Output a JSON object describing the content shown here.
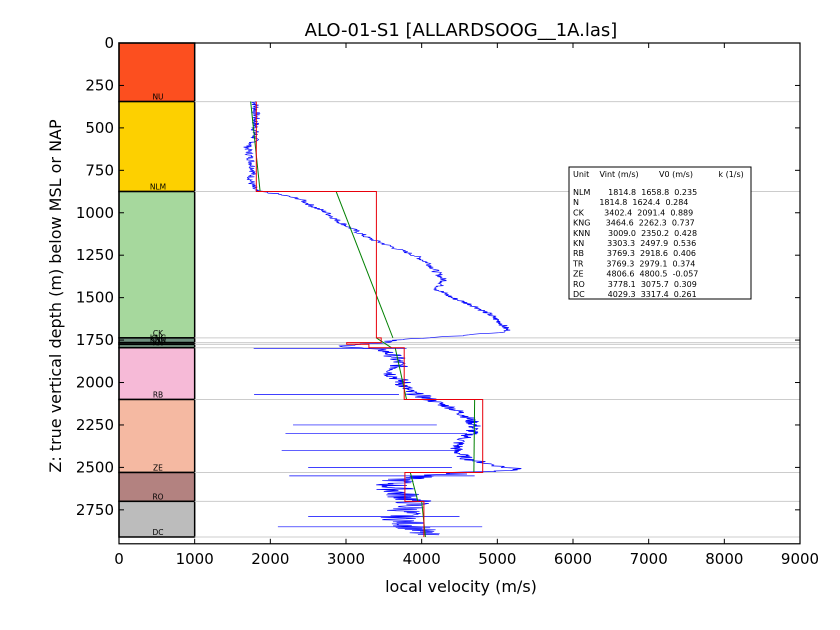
{
  "chart_data": {
    "type": "line",
    "title": "ALO-01-S1 [ALLARDSOOG__1A.las]",
    "xlabel": "local velocity (m/s)",
    "ylabel": "Z: true vertical depth (m) below MSL or NAP",
    "xlim": [
      0,
      9000
    ],
    "ylim": [
      2950,
      0
    ],
    "x_ticks": [
      0,
      1000,
      2000,
      3000,
      4000,
      5000,
      6000,
      7000,
      8000,
      9000
    ],
    "y_ticks": [
      0,
      250,
      500,
      750,
      1000,
      1250,
      1500,
      1750,
      2000,
      2250,
      2500,
      2750
    ],
    "grid": false,
    "lithology_column": {
      "x_range": [
        0,
        1000
      ],
      "units": [
        {
          "name": "NU",
          "top": 0,
          "base": 345,
          "color": "#fc4f1f"
        },
        {
          "name": "NLM",
          "top": 345,
          "base": 875,
          "color": "#fdd000"
        },
        {
          "name": "CK",
          "top": 875,
          "base": 1737,
          "color": "#a6d89d"
        },
        {
          "name": "KNG",
          "top": 1737,
          "base": 1765,
          "color": "#6f8f7e"
        },
        {
          "name": "KNN",
          "top": 1765,
          "base": 1775,
          "color": "#7c9c89"
        },
        {
          "name": "KN",
          "top": 1775,
          "base": 1795,
          "color": "#6e8e7b"
        },
        {
          "name": "RB",
          "top": 1795,
          "base": 2100,
          "color": "#f6bad7"
        },
        {
          "name": "ZE",
          "top": 2100,
          "base": 2530,
          "color": "#f5b9a2"
        },
        {
          "name": "RO",
          "top": 2530,
          "base": 2700,
          "color": "#b38280"
        },
        {
          "name": "DC",
          "top": 2700,
          "base": 2910,
          "color": "#bcbcbc"
        }
      ]
    },
    "interval_velocity_red": [
      {
        "unit": "NLM",
        "top": 345,
        "base": 875,
        "vint": 1814.8
      },
      {
        "unit": "CK",
        "top": 875,
        "base": 1737,
        "vint": 3402.4
      },
      {
        "unit": "KNG",
        "top": 1737,
        "base": 1765,
        "vint": 3464.6
      },
      {
        "unit": "KNN",
        "top": 1765,
        "base": 1775,
        "vint": 3009.0
      },
      {
        "unit": "KN",
        "top": 1775,
        "base": 1795,
        "vint": 3303.3
      },
      {
        "unit": "RB",
        "top": 1795,
        "base": 2100,
        "vint": 3769.3
      },
      {
        "unit": "ZE",
        "top": 2100,
        "base": 2530,
        "vint": 4806.6
      },
      {
        "unit": "RO",
        "top": 2530,
        "base": 2700,
        "vint": 3778.1
      },
      {
        "unit": "DC",
        "top": 2700,
        "base": 2910,
        "vint": 4029.3
      }
    ],
    "linear_trend_green": [
      {
        "unit": "NLM",
        "top": 345,
        "base": 875,
        "v_top": 1740,
        "v_base": 1865
      },
      {
        "unit": "CK",
        "top": 875,
        "base": 1737,
        "v_top": 2870,
        "v_base": 3620
      },
      {
        "unit": "KN",
        "top": 1737,
        "base": 1795,
        "v_top": 3400,
        "v_base": 3600
      },
      {
        "unit": "RB",
        "top": 1795,
        "base": 2100,
        "v_top": 3650,
        "v_base": 3800
      },
      {
        "unit": "ZE",
        "top": 2100,
        "base": 2530,
        "v_top": 4700,
        "v_base": 4690
      },
      {
        "unit": "RO",
        "top": 2530,
        "base": 2700,
        "v_top": 3850,
        "v_base": 3950
      },
      {
        "unit": "DC",
        "top": 2700,
        "base": 2910,
        "v_top": 4000,
        "v_base": 4050
      }
    ],
    "sonic_log_blue": [
      [
        1800,
        345
      ],
      [
        1810,
        420
      ],
      [
        1800,
        500
      ],
      [
        1790,
        580
      ],
      [
        1700,
        610
      ],
      [
        1720,
        650
      ],
      [
        1750,
        700
      ],
      [
        1780,
        750
      ],
      [
        1740,
        800
      ],
      [
        1760,
        840
      ],
      [
        1800,
        870
      ],
      [
        2100,
        890
      ],
      [
        2400,
        920
      ],
      [
        2550,
        960
      ],
      [
        2750,
        1000
      ],
      [
        2900,
        1050
      ],
      [
        3100,
        1100
      ],
      [
        3300,
        1150
      ],
      [
        3600,
        1200
      ],
      [
        3900,
        1250
      ],
      [
        4100,
        1300
      ],
      [
        4200,
        1350
      ],
      [
        4300,
        1400
      ],
      [
        4200,
        1450
      ],
      [
        4400,
        1500
      ],
      [
        4700,
        1550
      ],
      [
        4900,
        1600
      ],
      [
        5050,
        1650
      ],
      [
        5150,
        1700
      ],
      [
        4500,
        1725
      ],
      [
        3800,
        1745
      ],
      [
        3500,
        1765
      ],
      [
        3100,
        1775
      ],
      [
        3000,
        1790
      ],
      [
        3500,
        1810
      ],
      [
        3650,
        1850
      ],
      [
        3700,
        1900
      ],
      [
        3600,
        1950
      ],
      [
        3750,
        2000
      ],
      [
        3800,
        2050
      ],
      [
        4000,
        2080
      ],
      [
        4100,
        2100
      ],
      [
        4400,
        2150
      ],
      [
        4600,
        2200
      ],
      [
        4700,
        2250
      ],
      [
        4650,
        2300
      ],
      [
        4500,
        2350
      ],
      [
        4450,
        2400
      ],
      [
        4600,
        2450
      ],
      [
        5100,
        2500
      ],
      [
        5400,
        2515
      ],
      [
        4600,
        2530
      ],
      [
        3800,
        2560
      ],
      [
        3600,
        2600
      ],
      [
        3700,
        2650
      ],
      [
        3900,
        2700
      ],
      [
        3800,
        2750
      ],
      [
        3700,
        2800
      ],
      [
        3900,
        2850
      ],
      [
        4000,
        2900
      ]
    ],
    "legend_table": {
      "header": "Unit    Vint (m/s)        V0 (m/s)          k (1/s)",
      "rows": [
        "NLM       1814.8  1658.8  0.235",
        "N        1814.8  1624.4  0.284",
        "CK        3402.4  2091.4  0.889",
        "KNG      3464.6  2262.3  0.737",
        "KNN       3009.0  2350.2  0.428",
        "KN         3303.3  2497.9  0.536",
        "RB         3769.3  2918.6  0.406",
        "TR         3769.3  2979.1  0.374",
        "ZE         4806.6  4800.5  -0.057",
        "RO         3778.1  3075.7  0.309",
        "DC         4029.3  3317.4  0.261"
      ],
      "placement": "center-right"
    },
    "colors": {
      "sonic_log": "#0000ff",
      "interval_velocity": "#e8000b",
      "linear_trend": "#008000",
      "boundary_lines": "#cccccc"
    }
  }
}
